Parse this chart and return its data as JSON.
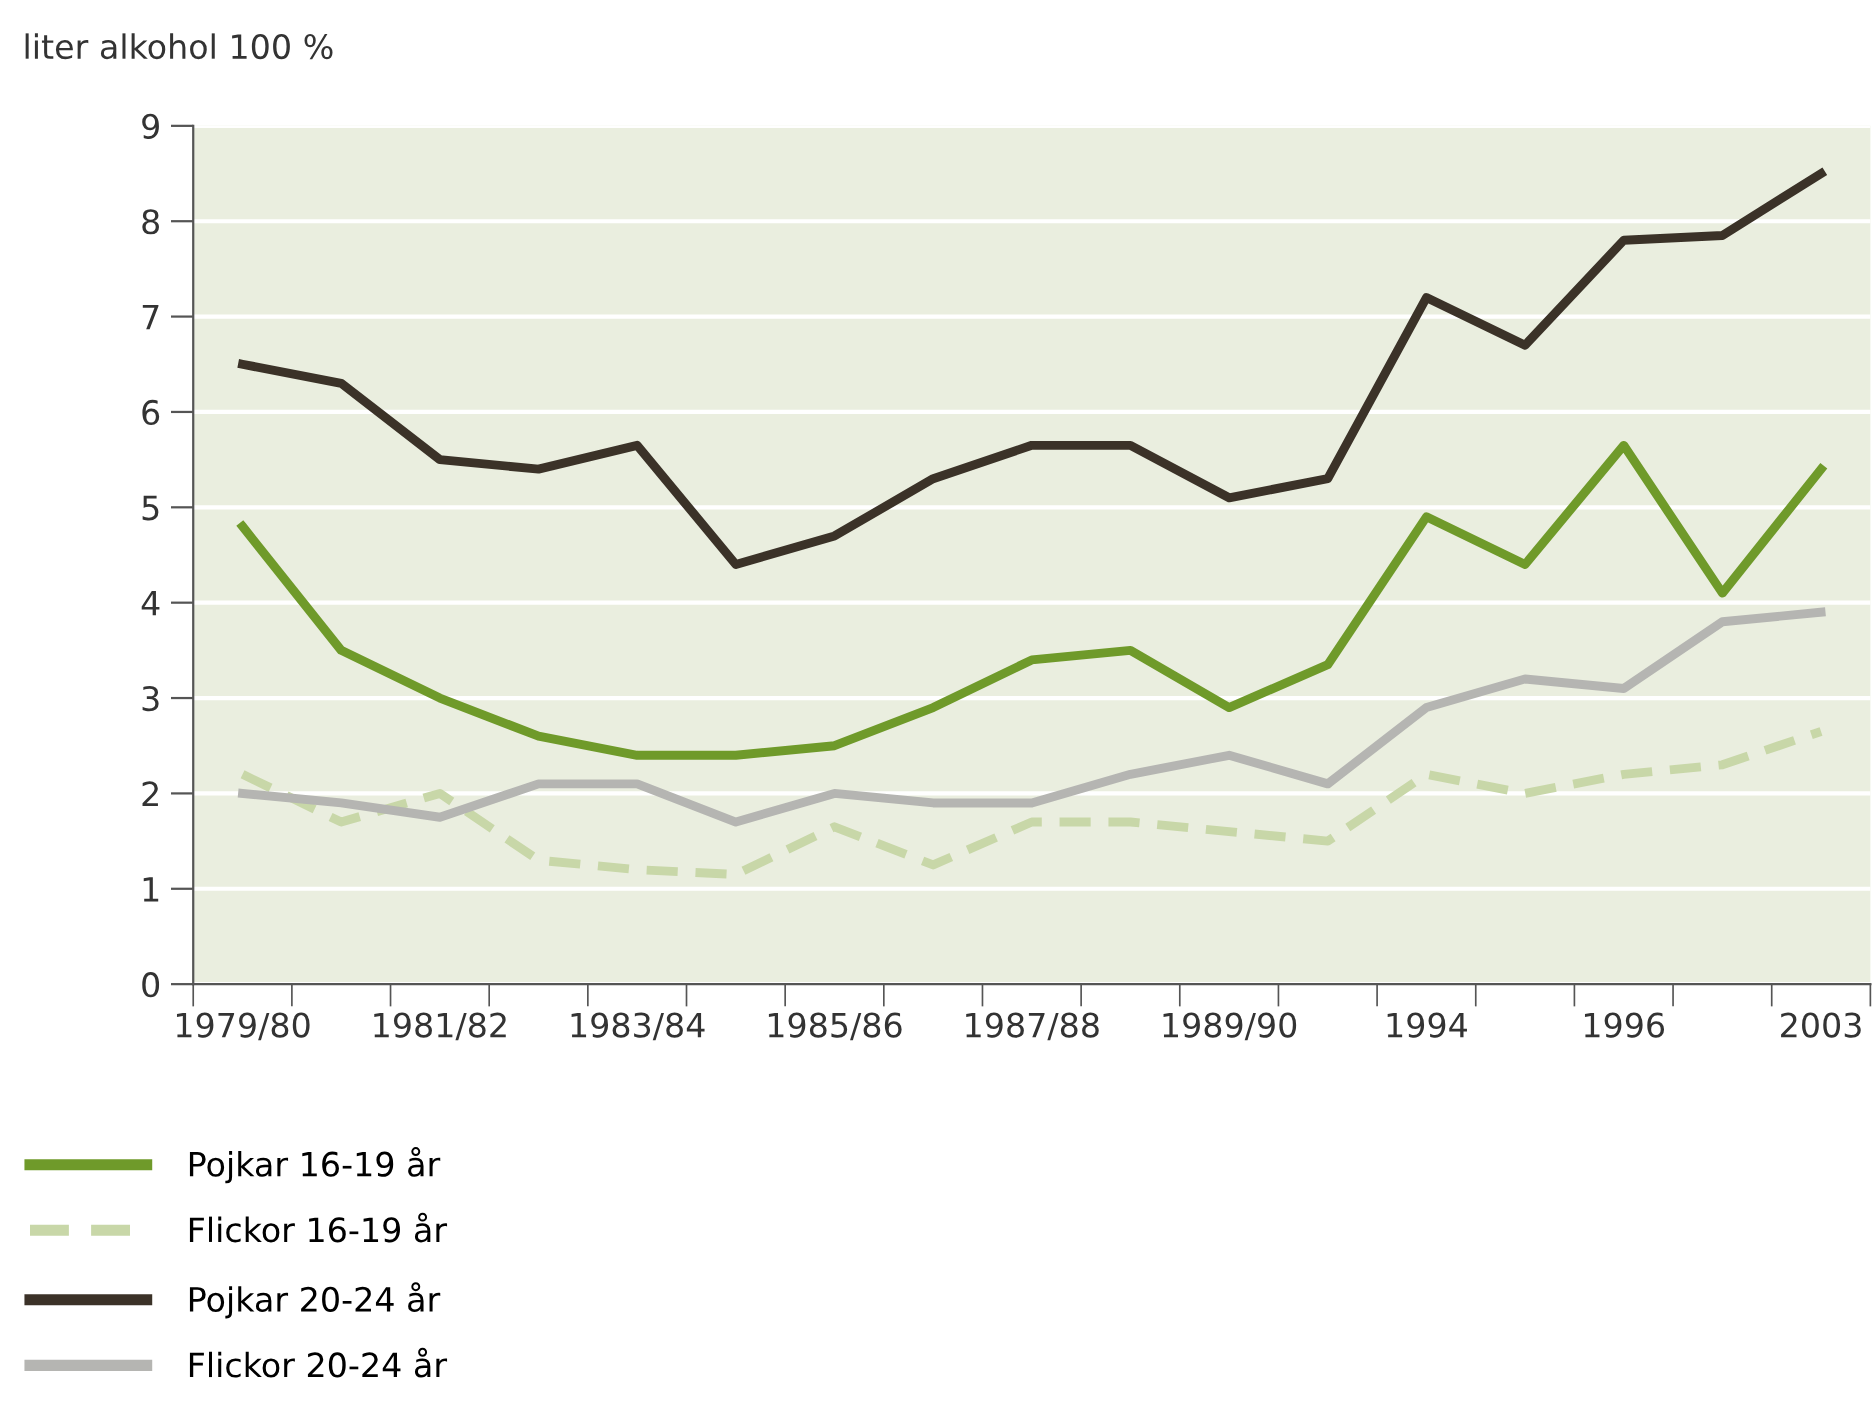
{
  "chart_data": {
    "type": "line",
    "ylabel": "liter alkohol 100 %",
    "categories": [
      "1979/80",
      null,
      "1981/82",
      null,
      "1983/84",
      null,
      "1985/86",
      null,
      "1987/88",
      null,
      "1989/90",
      null,
      "1994",
      null,
      "1996",
      null,
      "2003"
    ],
    "series": [
      {
        "name": "Pojkar 16-19 år",
        "color": "#6f9a2a",
        "line_style": "solid",
        "values": [
          4.8,
          3.5,
          3.0,
          2.6,
          2.4,
          2.4,
          2.5,
          2.9,
          3.4,
          3.5,
          2.9,
          3.35,
          4.9,
          4.4,
          5.65,
          4.1,
          5.4
        ]
      },
      {
        "name": "Flickor 16-19 år",
        "color": "#c8d7a8",
        "line_style": "dashed",
        "values": [
          2.2,
          1.7,
          2.0,
          1.3,
          1.2,
          1.15,
          1.65,
          1.25,
          1.7,
          1.7,
          1.6,
          1.5,
          2.2,
          2.0,
          2.2,
          2.3,
          2.65
        ]
      },
      {
        "name": "Pojkar 20-24 år",
        "color": "#3b3228",
        "line_style": "solid",
        "values": [
          6.5,
          6.3,
          5.5,
          5.4,
          5.65,
          4.4,
          4.7,
          5.3,
          5.65,
          5.65,
          5.1,
          5.3,
          7.2,
          6.7,
          7.8,
          7.85,
          8.5
        ]
      },
      {
        "name": "Flickor 20-24 år",
        "color": "#b5b5b2",
        "line_style": "solid",
        "values": [
          2.0,
          1.9,
          1.75,
          2.1,
          2.1,
          1.7,
          2.0,
          1.9,
          1.9,
          2.2,
          2.4,
          2.1,
          2.9,
          3.2,
          3.1,
          3.8,
          3.9
        ]
      }
    ],
    "ylim": [
      0,
      9
    ],
    "yticks": [
      0,
      1,
      2,
      3,
      4,
      5,
      6,
      7,
      8,
      9
    ],
    "grid": "y",
    "legend": "bottom left",
    "marker": "none"
  }
}
